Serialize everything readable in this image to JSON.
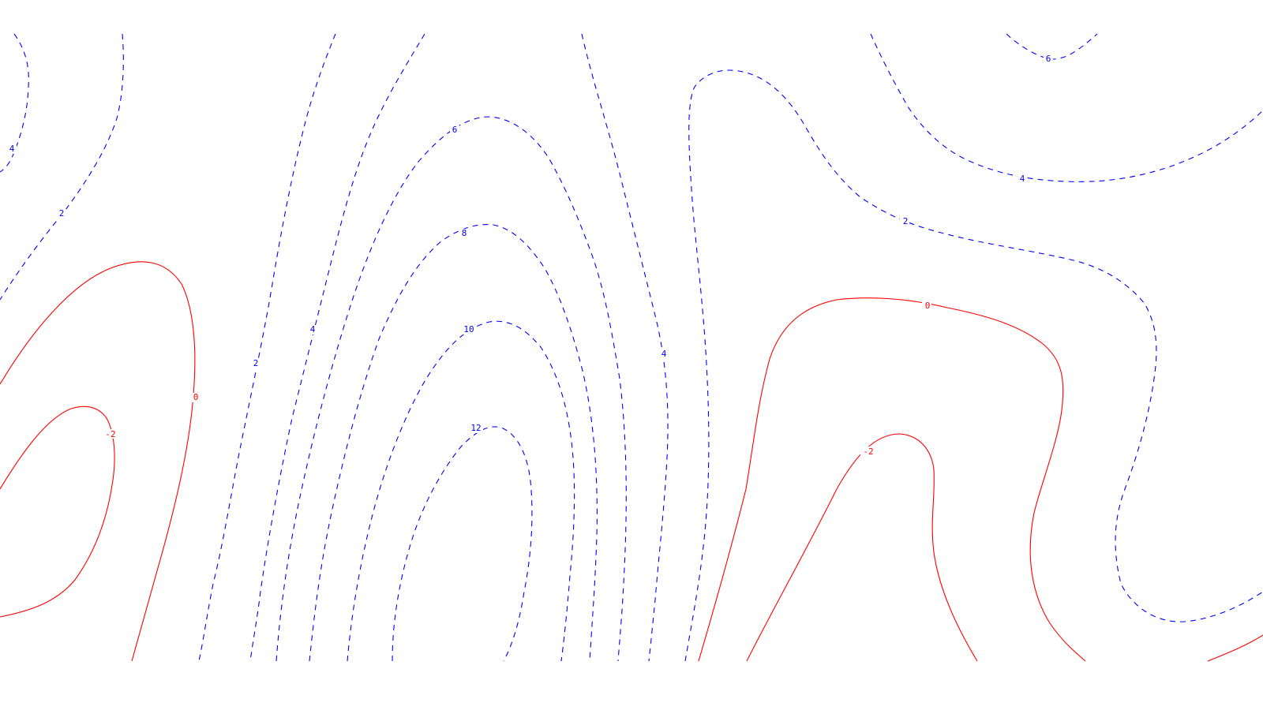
{
  "map": {
    "line_colors": {
      "negative": "#ff0000",
      "positive": "#0000ff"
    },
    "negative_line_style": "solid",
    "positive_line_style": "dashed",
    "contour_labels": [
      {
        "id": "lbl-neg0-left",
        "text": "0",
        "sign": "red"
      },
      {
        "id": "lbl-neg2-left",
        "text": "-2",
        "sign": "red"
      },
      {
        "id": "lbl-0-right",
        "text": "0",
        "sign": "red"
      },
      {
        "id": "lbl-neg2-right",
        "text": "-2",
        "sign": "red"
      },
      {
        "id": "lbl-4-topleft",
        "text": "4",
        "sign": "blue"
      },
      {
        "id": "lbl-2-topleft",
        "text": "2",
        "sign": "blue"
      },
      {
        "id": "lbl-2-mid",
        "text": "2",
        "sign": "blue"
      },
      {
        "id": "lbl-4-mid",
        "text": "4",
        "sign": "blue"
      },
      {
        "id": "lbl-6-center",
        "text": "6",
        "sign": "blue"
      },
      {
        "id": "lbl-8-center",
        "text": "8",
        "sign": "blue"
      },
      {
        "id": "lbl-10-center",
        "text": "10",
        "sign": "blue"
      },
      {
        "id": "lbl-12-center",
        "text": "12",
        "sign": "blue"
      },
      {
        "id": "lbl-4-centerright",
        "text": "4",
        "sign": "blue"
      },
      {
        "id": "lbl-2-right",
        "text": "2",
        "sign": "blue"
      },
      {
        "id": "lbl-4-right",
        "text": "4",
        "sign": "blue"
      },
      {
        "id": "lbl-6-topright",
        "text": "6",
        "sign": "blue"
      }
    ]
  }
}
